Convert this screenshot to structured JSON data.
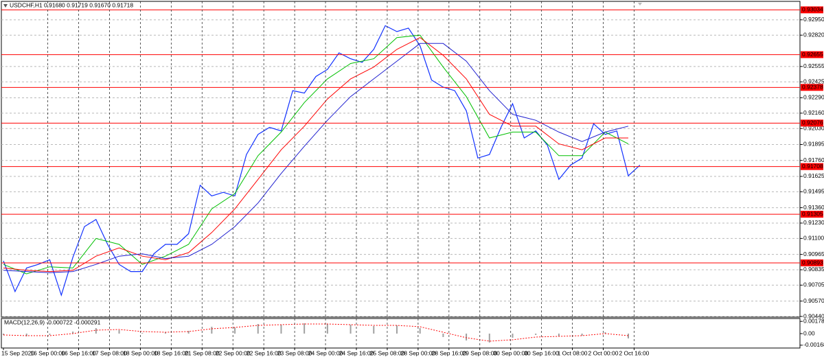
{
  "chart_data": [
    {
      "type": "line",
      "title": "USDCHF,H1  0.91680 0.91719 0.91670 0.91718",
      "x": [
        0,
        6,
        12,
        18,
        24,
        30,
        36,
        42,
        48,
        54,
        60,
        66,
        72,
        78,
        84,
        90,
        96,
        102,
        108,
        114,
        120,
        126,
        132,
        138,
        144,
        150,
        156,
        162,
        168,
        174,
        180,
        186,
        192,
        198,
        204,
        210,
        216,
        222,
        228,
        234,
        240,
        246,
        252,
        258,
        264,
        270,
        276,
        282,
        288,
        294,
        300,
        306,
        312,
        318,
        324,
        330
      ],
      "series": [
        {
          "color": "#1030ff",
          "values": [
            0.9091,
            0.9065,
            0.9085,
            0.9088,
            0.9092,
            0.9062,
            0.9094,
            0.912,
            0.9126,
            0.9105,
            0.9088,
            0.9082,
            0.9082,
            0.9097,
            0.9105,
            0.9105,
            0.9114,
            0.9155,
            0.9146,
            0.9149,
            0.9146,
            0.9181,
            0.9198,
            0.9204,
            0.9201,
            0.9235,
            0.9233,
            0.9247,
            0.9253,
            0.9267,
            0.9262,
            0.9259,
            0.927,
            0.929,
            0.9285,
            0.9288,
            0.9273,
            0.9244,
            0.9238,
            0.9235,
            0.9218,
            0.9178,
            0.9181,
            0.9204,
            0.9224,
            0.9195,
            0.9201,
            0.9189,
            0.916,
            0.9172,
            0.9178,
            0.9207,
            0.9198,
            0.9201,
            0.9163,
            0.9172
          ]
        },
        {
          "color": "#00c000",
          "x": [
            0,
            12,
            24,
            36,
            48,
            60,
            72,
            84,
            96,
            108,
            120,
            132,
            144,
            156,
            168,
            180,
            192,
            204,
            216,
            228,
            240,
            252,
            264,
            276,
            288,
            300,
            312,
            324
          ],
          "values": [
            0.9088,
            0.908,
            0.9086,
            0.9085,
            0.911,
            0.9105,
            0.9088,
            0.9095,
            0.9105,
            0.9135,
            0.9148,
            0.918,
            0.92,
            0.9225,
            0.9245,
            0.9258,
            0.9262,
            0.928,
            0.9282,
            0.9255,
            0.923,
            0.9195,
            0.92,
            0.92,
            0.918,
            0.918,
            0.92,
            0.919
          ]
        },
        {
          "color": "#ff0000",
          "x": [
            0,
            12,
            24,
            36,
            48,
            60,
            72,
            84,
            96,
            108,
            120,
            132,
            144,
            156,
            168,
            180,
            192,
            204,
            216,
            228,
            240,
            252,
            264,
            276,
            288,
            300,
            312,
            324
          ],
          "values": [
            0.9085,
            0.9083,
            0.9082,
            0.9083,
            0.9095,
            0.9102,
            0.9095,
            0.9092,
            0.9098,
            0.9115,
            0.9135,
            0.916,
            0.9185,
            0.9205,
            0.9228,
            0.9245,
            0.9255,
            0.927,
            0.928,
            0.9265,
            0.9245,
            0.9215,
            0.9205,
            0.9205,
            0.919,
            0.9185,
            0.9195,
            0.9195
          ]
        },
        {
          "color": "#2020d0",
          "x": [
            0,
            12,
            24,
            36,
            48,
            60,
            72,
            84,
            96,
            108,
            120,
            132,
            144,
            156,
            168,
            180,
            192,
            204,
            216,
            228,
            240,
            252,
            264,
            276,
            288,
            300,
            312,
            324
          ],
          "values": [
            0.9083,
            0.9082,
            0.9081,
            0.9082,
            0.9088,
            0.9095,
            0.9097,
            0.9093,
            0.9095,
            0.9105,
            0.912,
            0.914,
            0.9165,
            0.9188,
            0.921,
            0.923,
            0.9245,
            0.926,
            0.9275,
            0.9275,
            0.926,
            0.9235,
            0.9215,
            0.921,
            0.92,
            0.9192,
            0.92,
            0.9205
          ]
        }
      ],
      "xlim": [
        0,
        413
      ],
      "xticks": [
        {
          "value": 0,
          "label": "15 Sep 2020"
        },
        {
          "value": 23,
          "label": "16 Sep 00:00"
        },
        {
          "value": 39,
          "label": "16 Sep 16:00"
        },
        {
          "value": 55,
          "label": "17 Sep 08:00"
        },
        {
          "value": 71,
          "label": "18 Sep 00:00"
        },
        {
          "value": 87,
          "label": "18 Sep 16:00"
        },
        {
          "value": 103,
          "label": "21 Sep 08:00"
        },
        {
          "value": 119,
          "label": "22 Sep 00:00"
        },
        {
          "value": 135,
          "label": "22 Sep 16:00"
        },
        {
          "value": 151,
          "label": "23 Sep 08:00"
        },
        {
          "value": 167,
          "label": "24 Sep 00:00"
        },
        {
          "value": 183,
          "label": "24 Sep 16:00"
        },
        {
          "value": 199,
          "label": "25 Sep 08:00"
        },
        {
          "value": 215,
          "label": "28 Sep 00:00"
        },
        {
          "value": 231,
          "label": "28 Sep 16:00"
        },
        {
          "value": 247,
          "label": "29 Sep 08:00"
        },
        {
          "value": 263,
          "label": "30 Sep 00:00"
        },
        {
          "value": 279,
          "label": "30 Sep 16:00"
        },
        {
          "value": 295,
          "label": "1 Oct 08:00"
        },
        {
          "value": 311,
          "label": "2 Oct 00:00"
        },
        {
          "value": 327,
          "label": "2 Oct 16:00"
        }
      ],
      "ylim": [
        0.9044,
        0.931
      ],
      "yticks": [
        {
          "value": 0.9295,
          "label": "0.92950"
        },
        {
          "value": 0.9282,
          "label": "0.92820"
        },
        {
          "value": 0.92555,
          "label": "0.92555"
        },
        {
          "value": 0.92425,
          "label": "0.92425"
        },
        {
          "value": 0.9229,
          "label": "0.92290"
        },
        {
          "value": 0.9216,
          "label": "0.92160"
        },
        {
          "value": 0.9203,
          "label": "0.92030"
        },
        {
          "value": 0.91895,
          "label": "0.91895"
        },
        {
          "value": 0.9176,
          "label": "0.91760"
        },
        {
          "value": 0.91625,
          "label": "0.91625"
        },
        {
          "value": 0.91495,
          "label": "0.91495"
        },
        {
          "value": 0.9136,
          "label": "0.91360"
        },
        {
          "value": 0.9123,
          "label": "0.91230"
        },
        {
          "value": 0.911,
          "label": "0.91100"
        },
        {
          "value": 0.90965,
          "label": "0.90965"
        },
        {
          "value": 0.90835,
          "label": "0.90835"
        },
        {
          "value": 0.90705,
          "label": "0.90705"
        },
        {
          "value": 0.9057,
          "label": "0.90570"
        },
        {
          "value": 0.9044,
          "label": "0.90440"
        }
      ],
      "levels": [
        0.93034,
        0.92655,
        0.92378,
        0.92076,
        0.91708,
        0.91305,
        0.90893
      ],
      "levels_color": "#ff0000",
      "grid": true
    },
    {
      "type": "macd",
      "title": "MACD(12,26,9) -0.000722 -0.000291",
      "x": [
        0,
        12,
        24,
        36,
        48,
        60,
        72,
        84,
        96,
        108,
        120,
        132,
        144,
        156,
        168,
        180,
        192,
        204,
        216,
        228,
        240,
        252,
        264,
        276,
        288,
        300,
        312,
        324
      ],
      "series": [
        {
          "style": "bars",
          "color": "#a0a0a0",
          "values": [
            -0.0002,
            -0.0004,
            -0.0002,
            0.0003,
            0.0008,
            0.0005,
            0.0001,
            0.0002,
            0.0004,
            0.001,
            0.0009,
            0.0014,
            0.0013,
            0.0015,
            0.0014,
            0.0013,
            0.0011,
            0.0012,
            0.0008,
            -0.0005,
            -0.001,
            -0.0013,
            -0.0006,
            -0.0002,
            -0.0004,
            -0.0003,
            0.0002,
            -0.0007
          ]
        },
        {
          "style": "dash",
          "color": "#ff0000",
          "values": [
            -0.0002,
            -0.0003,
            -0.0003,
            0,
            0.0005,
            0.0006,
            0.0003,
            0.0002,
            0.0003,
            0.0007,
            0.0009,
            0.0012,
            0.0013,
            0.0014,
            0.0014,
            0.0013,
            0.0012,
            0.0012,
            0.001,
            0.0002,
            -0.0006,
            -0.0011,
            -0.0009,
            -0.0005,
            -0.0004,
            -0.0003,
            0,
            -0.0003
          ]
        }
      ],
      "ylim": [
        -0.0019,
        0.002
      ],
      "yticks": [
        0.001782,
        {
          "value": 0,
          "label": "0.00"
        },
        -0.001688
      ]
    }
  ]
}
